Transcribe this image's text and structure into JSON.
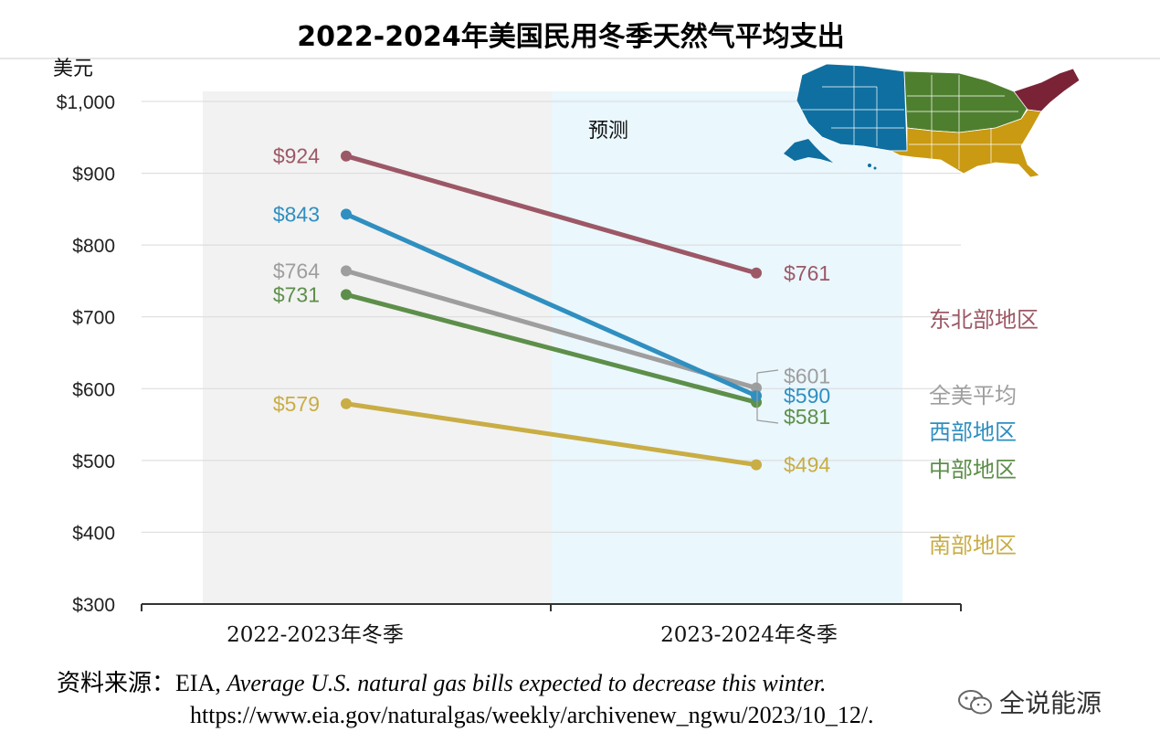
{
  "chart_data": {
    "type": "line",
    "title": "2022-2024年美国民用冬季天然气平均支出",
    "unit_label": "美元",
    "categories": [
      "2022-2023年冬季",
      "2023-2024年冬季"
    ],
    "ylim": [
      300,
      1000
    ],
    "yticks": [
      "$1,000",
      "$900",
      "$800",
      "$700",
      "$600",
      "$500",
      "$400",
      "$300"
    ],
    "forecast_label": "预测",
    "grid": true,
    "series": [
      {
        "name": "东北部地区",
        "values": [
          924,
          761
        ],
        "labels": [
          "$924",
          "$761"
        ],
        "color": "#9c5866"
      },
      {
        "name": "西部地区",
        "values": [
          843,
          590
        ],
        "labels": [
          "$843",
          "$590"
        ],
        "color": "#2f8fc0"
      },
      {
        "name": "全美平均",
        "values": [
          764,
          601
        ],
        "labels": [
          "$764",
          "$601"
        ],
        "color": "#9e9e9e"
      },
      {
        "name": "中部地区",
        "values": [
          731,
          581
        ],
        "labels": [
          "$731",
          "$581"
        ],
        "color": "#5d8f4a"
      },
      {
        "name": "南部地区",
        "values": [
          579,
          494
        ],
        "labels": [
          "$579",
          "$494"
        ],
        "color": "#c9ad45"
      }
    ]
  },
  "source": {
    "prefix": "资料来源：EIA, ",
    "title": "Average U.S. natural gas bills expected to decrease this winter.",
    "url": "https://www.eia.gov/naturalgas/weekly/archivenew_ngwu/2023/10_12/."
  },
  "watermark": "全说能源",
  "map_colors": {
    "west": "#0f6fa0",
    "midwest": "#4e7f2e",
    "south": "#c99a12",
    "northeast": "#7a2337"
  }
}
